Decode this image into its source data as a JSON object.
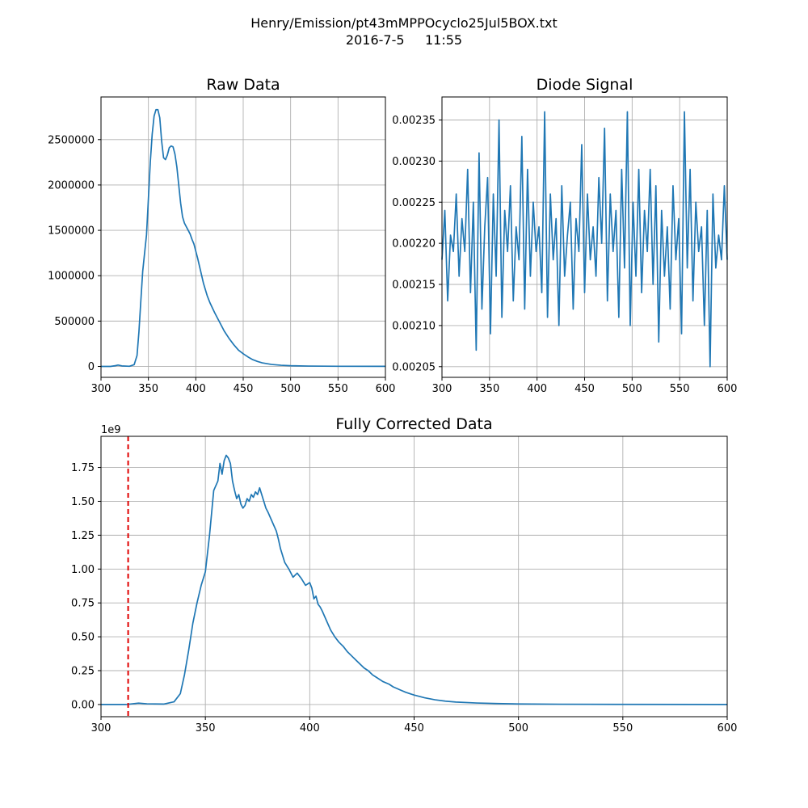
{
  "figure": {
    "title_line1": "Henry/Emission/pt43mMPPOcyclo25Jul5BOX.txt",
    "title_line2": "2016-7-5     11:55"
  },
  "colors": {
    "series": "#1f77b4",
    "marker": "#e00000",
    "grid": "#b0b0b0"
  },
  "chart_data": [
    {
      "id": "raw",
      "type": "line",
      "title": "Raw Data",
      "xlabel": "",
      "ylabel": "",
      "xlim": [
        300,
        600
      ],
      "ylim": [
        -120000,
        2970000
      ],
      "grid": true,
      "xticks": [
        300,
        350,
        400,
        450,
        500,
        550,
        600
      ],
      "yticks": [
        0,
        500000,
        1000000,
        1500000,
        2000000,
        2500000
      ],
      "ytick_labels": [
        "0",
        "500000",
        "1000000",
        "1500000",
        "2000000",
        "2500000"
      ],
      "x": [
        300,
        310,
        315,
        318,
        322,
        330,
        335,
        338,
        340,
        342,
        344,
        346,
        348,
        350,
        352,
        354,
        356,
        358,
        360,
        362,
        364,
        366,
        368,
        370,
        372,
        374,
        376,
        378,
        380,
        382,
        384,
        386,
        388,
        390,
        392,
        394,
        396,
        398,
        400,
        402,
        404,
        406,
        408,
        410,
        412,
        415,
        420,
        425,
        430,
        435,
        440,
        445,
        450,
        455,
        460,
        465,
        470,
        480,
        490,
        500,
        520,
        550,
        600
      ],
      "y": [
        0,
        0,
        8000,
        15000,
        6000,
        2000,
        20000,
        120000,
        380000,
        720000,
        1050000,
        1250000,
        1450000,
        1850000,
        2250000,
        2560000,
        2760000,
        2830000,
        2830000,
        2740000,
        2480000,
        2300000,
        2280000,
        2330000,
        2410000,
        2430000,
        2420000,
        2340000,
        2200000,
        2000000,
        1800000,
        1650000,
        1580000,
        1540000,
        1500000,
        1460000,
        1400000,
        1350000,
        1270000,
        1190000,
        1100000,
        1010000,
        920000,
        850000,
        780000,
        700000,
        590000,
        490000,
        390000,
        310000,
        240000,
        180000,
        140000,
        105000,
        75000,
        55000,
        40000,
        22000,
        13000,
        8000,
        4000,
        2000,
        1000
      ]
    },
    {
      "id": "diode",
      "type": "line",
      "title": "Diode Signal",
      "xlabel": "",
      "ylabel": "",
      "xlim": [
        300,
        600
      ],
      "ylim": [
        0.002037,
        0.002378
      ],
      "grid": true,
      "xticks": [
        300,
        350,
        400,
        450,
        500,
        550,
        600
      ],
      "yticks": [
        0.00205,
        0.0021,
        0.00215,
        0.0022,
        0.00225,
        0.0023,
        0.00235
      ],
      "ytick_labels": [
        "0.00205",
        "0.00210",
        "0.00215",
        "0.00220",
        "0.00225",
        "0.00230",
        "0.00235"
      ],
      "x": [
        300,
        303,
        306,
        309,
        312,
        315,
        318,
        321,
        324,
        327,
        330,
        333,
        336,
        339,
        342,
        345,
        348,
        351,
        354,
        357,
        360,
        363,
        366,
        369,
        372,
        375,
        378,
        381,
        384,
        387,
        390,
        393,
        396,
        399,
        402,
        405,
        408,
        411,
        414,
        417,
        420,
        423,
        426,
        429,
        432,
        435,
        438,
        441,
        444,
        447,
        450,
        453,
        456,
        459,
        462,
        465,
        468,
        471,
        474,
        477,
        480,
        483,
        486,
        489,
        492,
        495,
        498,
        501,
        504,
        507,
        510,
        513,
        516,
        519,
        522,
        525,
        528,
        531,
        534,
        537,
        540,
        543,
        546,
        549,
        552,
        555,
        558,
        561,
        564,
        567,
        570,
        573,
        576,
        579,
        582,
        585,
        588,
        591,
        594,
        597,
        600
      ],
      "y": [
        0.00218,
        0.00224,
        0.00213,
        0.00221,
        0.00219,
        0.00226,
        0.00216,
        0.00223,
        0.00219,
        0.00229,
        0.00214,
        0.00225,
        0.00207,
        0.00231,
        0.00212,
        0.00222,
        0.00228,
        0.00209,
        0.00226,
        0.00216,
        0.00235,
        0.00211,
        0.00224,
        0.00219,
        0.00227,
        0.00213,
        0.00222,
        0.00218,
        0.00233,
        0.00212,
        0.00229,
        0.00216,
        0.00225,
        0.00219,
        0.00222,
        0.00214,
        0.00236,
        0.00211,
        0.00226,
        0.00218,
        0.00223,
        0.0021,
        0.00227,
        0.00216,
        0.00221,
        0.00225,
        0.00212,
        0.00223,
        0.00219,
        0.00232,
        0.00214,
        0.00226,
        0.00218,
        0.00222,
        0.00216,
        0.00228,
        0.0022,
        0.00234,
        0.00213,
        0.00226,
        0.00219,
        0.00224,
        0.00211,
        0.00229,
        0.00217,
        0.00236,
        0.0021,
        0.00225,
        0.00216,
        0.00229,
        0.00214,
        0.00224,
        0.00219,
        0.00229,
        0.00215,
        0.00227,
        0.00208,
        0.00224,
        0.00216,
        0.00222,
        0.00212,
        0.00227,
        0.00218,
        0.00223,
        0.00209,
        0.00236,
        0.00217,
        0.00229,
        0.00213,
        0.00225,
        0.00219,
        0.00222,
        0.0021,
        0.00224,
        0.00205,
        0.00226,
        0.00217,
        0.00221,
        0.00218,
        0.00227,
        0.00218
      ]
    },
    {
      "id": "corrected",
      "type": "line",
      "title": "Fully Corrected Data",
      "xlabel": "",
      "ylabel": "",
      "offset_text": "1e9",
      "xlim": [
        300,
        600
      ],
      "ylim": [
        -0.09,
        1.98
      ],
      "grid": true,
      "xticks": [
        300,
        350,
        400,
        450,
        500,
        550,
        600
      ],
      "yticks": [
        0,
        0.25,
        0.5,
        0.75,
        1.0,
        1.25,
        1.5,
        1.75
      ],
      "ytick_labels": [
        "0.00",
        "0.25",
        "0.50",
        "0.75",
        "1.00",
        "1.25",
        "1.50",
        "1.75"
      ],
      "vline_x": 313,
      "x": [
        300,
        312,
        315,
        318,
        322,
        330,
        335,
        338,
        340,
        342,
        344,
        346,
        348,
        350,
        352,
        354,
        356,
        357,
        358,
        359,
        360,
        361,
        362,
        363,
        364,
        365,
        366,
        367,
        368,
        369,
        370,
        371,
        372,
        373,
        374,
        375,
        376,
        377,
        378,
        379,
        380,
        382,
        384,
        385,
        386,
        388,
        390,
        392,
        394,
        396,
        398,
        400,
        401,
        402,
        403,
        404,
        405,
        406,
        408,
        410,
        412,
        414,
        416,
        418,
        420,
        422,
        424,
        426,
        428,
        430,
        432,
        435,
        438,
        440,
        443,
        446,
        450,
        455,
        460,
        465,
        470,
        480,
        490,
        500,
        520,
        550,
        600
      ],
      "y": [
        0,
        0,
        0.005,
        0.01,
        0.005,
        0.003,
        0.02,
        0.08,
        0.22,
        0.4,
        0.6,
        0.75,
        0.88,
        0.98,
        1.25,
        1.58,
        1.65,
        1.78,
        1.7,
        1.8,
        1.84,
        1.82,
        1.78,
        1.65,
        1.58,
        1.52,
        1.55,
        1.48,
        1.45,
        1.47,
        1.52,
        1.5,
        1.55,
        1.53,
        1.57,
        1.55,
        1.6,
        1.55,
        1.5,
        1.45,
        1.42,
        1.35,
        1.28,
        1.22,
        1.15,
        1.05,
        1.0,
        0.94,
        0.97,
        0.93,
        0.88,
        0.9,
        0.86,
        0.78,
        0.8,
        0.74,
        0.72,
        0.69,
        0.62,
        0.55,
        0.5,
        0.46,
        0.43,
        0.39,
        0.36,
        0.33,
        0.3,
        0.27,
        0.25,
        0.22,
        0.2,
        0.17,
        0.15,
        0.13,
        0.11,
        0.09,
        0.07,
        0.05,
        0.035,
        0.025,
        0.018,
        0.011,
        0.007,
        0.004,
        0.002,
        0.001,
        0
      ]
    }
  ]
}
